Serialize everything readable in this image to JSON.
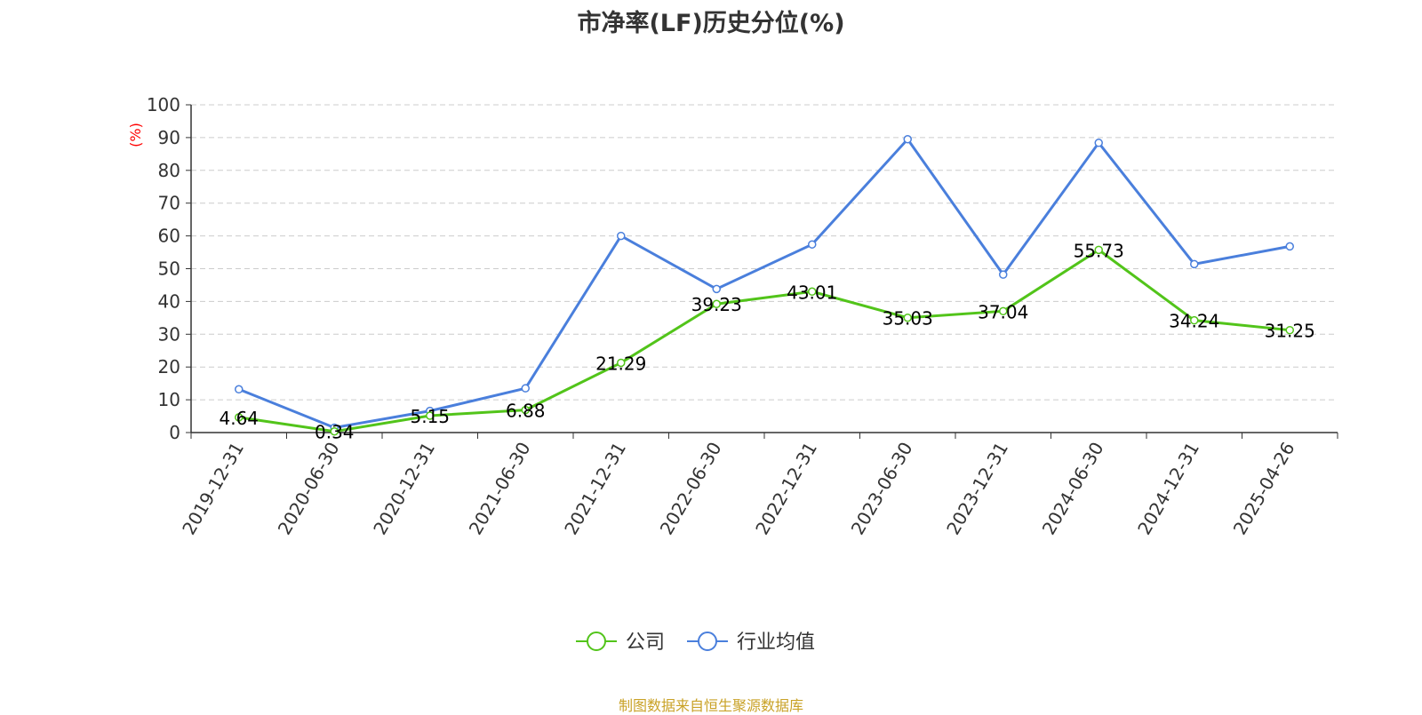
{
  "source_note": "制图数据来自恒生聚源数据库",
  "chart_data": {
    "type": "line",
    "title": "市净率(LF)历史分位(%)",
    "ylabel": "(%)",
    "ylim": [
      0,
      100
    ],
    "yticks": [
      0,
      10,
      20,
      30,
      40,
      50,
      60,
      70,
      80,
      90,
      100
    ],
    "grid": true,
    "legend_position": "bottom-center",
    "categories": [
      "2019-12-31",
      "2020-06-30",
      "2020-12-31",
      "2021-06-30",
      "2021-12-31",
      "2022-06-30",
      "2022-12-31",
      "2023-06-30",
      "2023-12-31",
      "2024-06-30",
      "2024-12-31",
      "2025-04-26"
    ],
    "series": [
      {
        "name": "公司",
        "color": "#52c41a",
        "show_labels": true,
        "values": [
          4.64,
          0.34,
          5.15,
          6.88,
          21.29,
          39.23,
          43.01,
          35.03,
          37.04,
          55.73,
          34.24,
          31.25
        ]
      },
      {
        "name": "行业均值",
        "color": "#4a7fdc",
        "show_labels": false,
        "values": [
          13.2,
          1.5,
          6.6,
          13.5,
          60.0,
          43.8,
          57.4,
          89.5,
          48.2,
          88.4,
          51.4,
          56.8
        ]
      }
    ]
  }
}
